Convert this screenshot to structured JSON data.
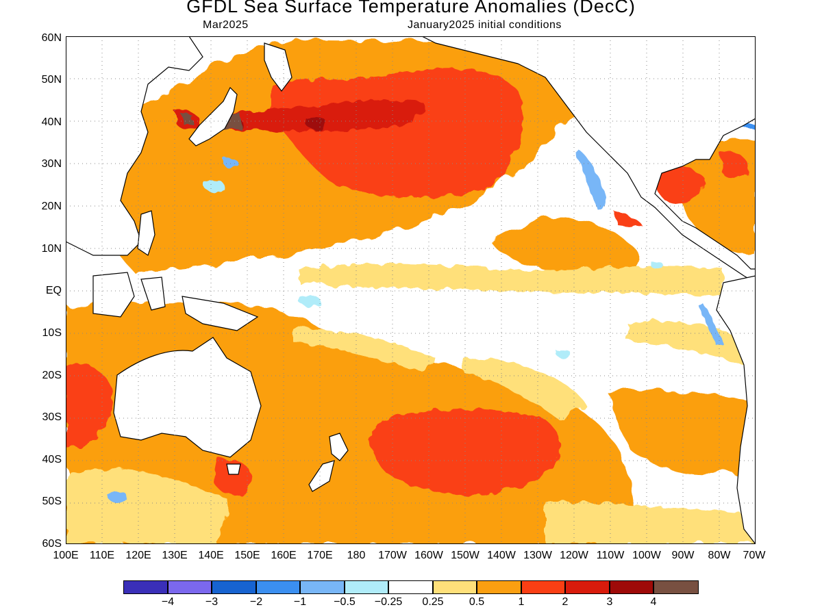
{
  "header": {
    "title": "GFDL Sea Surface Temperature Anomalies (DecC)",
    "valid_month": "Mar2025",
    "initial_conditions": "January2025 initial conditions"
  },
  "map": {
    "lat_labels": [
      "60N",
      "50N",
      "40N",
      "30N",
      "20N",
      "10N",
      "EQ",
      "10S",
      "20S",
      "30S",
      "40S",
      "50S",
      "60S"
    ],
    "lon_labels": [
      "100E",
      "110E",
      "120E",
      "130E",
      "140E",
      "150E",
      "160E",
      "170E",
      "180",
      "170W",
      "160W",
      "150W",
      "140W",
      "130W",
      "120W",
      "110W",
      "100W",
      "90W",
      "80W",
      "70W"
    ],
    "land_color": "#ffffff",
    "coastline_color": "#000000"
  },
  "colorbar": {
    "colors": [
      "#3a2fb8",
      "#7b68ee",
      "#1763d0",
      "#3b8ff0",
      "#78b6f7",
      "#b0ecf9",
      "#ffffff",
      "#ffe07a",
      "#fb9f11",
      "#fa3f14",
      "#d91b0c",
      "#9e0a08",
      "#785041"
    ],
    "labels": [
      "−4",
      "−3",
      "−2",
      "−1",
      "−0.5",
      "−0.25",
      "0.25",
      "0.5",
      "1",
      "2",
      "3",
      "4"
    ]
  }
}
